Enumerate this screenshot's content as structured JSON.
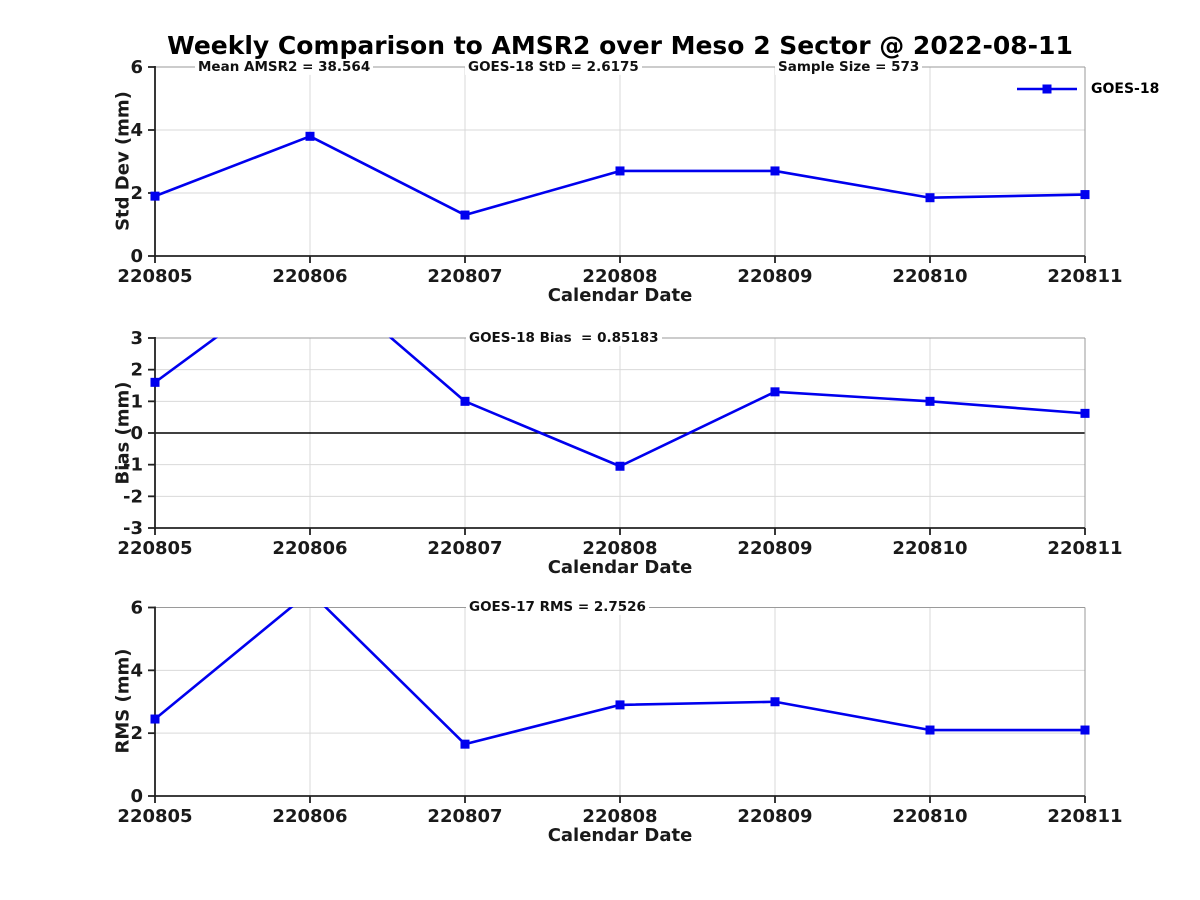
{
  "title": "Weekly Comparison to AMSR2 over Meso 2 Sector @ 2022-08-11",
  "legend": {
    "label": "GOES-18"
  },
  "colors": {
    "line": "#0000EE",
    "grid": "#d9d9d9",
    "axis": "#222222",
    "box": "#9a9a9a",
    "zero_line": "#000000",
    "text": "#1a1a1a"
  },
  "chart_data": [
    {
      "type": "line",
      "id": "std-dev",
      "categories": [
        "220805",
        "220806",
        "220807",
        "220808",
        "220809",
        "220810",
        "220811"
      ],
      "series": [
        {
          "name": "GOES-18",
          "values": [
            1.9,
            3.8,
            1.3,
            2.7,
            2.7,
            1.85,
            1.95
          ]
        }
      ],
      "xlabel": "Calendar Date",
      "ylabel": "Std Dev (mm)",
      "ylim": [
        0,
        6
      ],
      "yticks": [
        0,
        2,
        4,
        6
      ],
      "grid": true,
      "zero_line": false,
      "legend_position": "top-right",
      "annotations": [
        "Mean AMSR2 = 38.564",
        "GOES-18 StD = 2.6175",
        "Sample Size = 573"
      ]
    },
    {
      "type": "line",
      "id": "bias",
      "categories": [
        "220805",
        "220806",
        "220807",
        "220808",
        "220809",
        "220810",
        "220811"
      ],
      "series": [
        {
          "name": "GOES-18",
          "values": [
            1.6,
            5.2,
            1.0,
            -1.05,
            1.3,
            1.0,
            0.62
          ]
        }
      ],
      "xlabel": "Calendar Date",
      "ylabel": "Bias (mm)",
      "ylim": [
        -3,
        3
      ],
      "yticks": [
        3,
        2,
        1,
        0,
        -1,
        -2,
        -3
      ],
      "grid": true,
      "zero_line": true,
      "clipped_note": "value at 220806 exceeds y-axis max and is clipped at top",
      "annotations": [
        "GOES-18 Bias  = 0.85183"
      ]
    },
    {
      "type": "line",
      "id": "rms",
      "categories": [
        "220805",
        "220806",
        "220807",
        "220808",
        "220809",
        "220810",
        "220811"
      ],
      "series": [
        {
          "name": "GOES-18",
          "values": [
            2.45,
            6.5,
            1.65,
            2.9,
            3.0,
            2.1,
            2.1
          ]
        }
      ],
      "xlabel": "Calendar Date",
      "ylabel": "RMS (mm)",
      "ylim": [
        0,
        6
      ],
      "yticks": [
        0,
        2,
        4,
        6
      ],
      "grid": true,
      "zero_line": false,
      "clipped_note": "value at 220806 exceeds y-axis max and is clipped at top",
      "annotations": [
        "GOES-17 RMS = 2.7526"
      ]
    }
  ]
}
